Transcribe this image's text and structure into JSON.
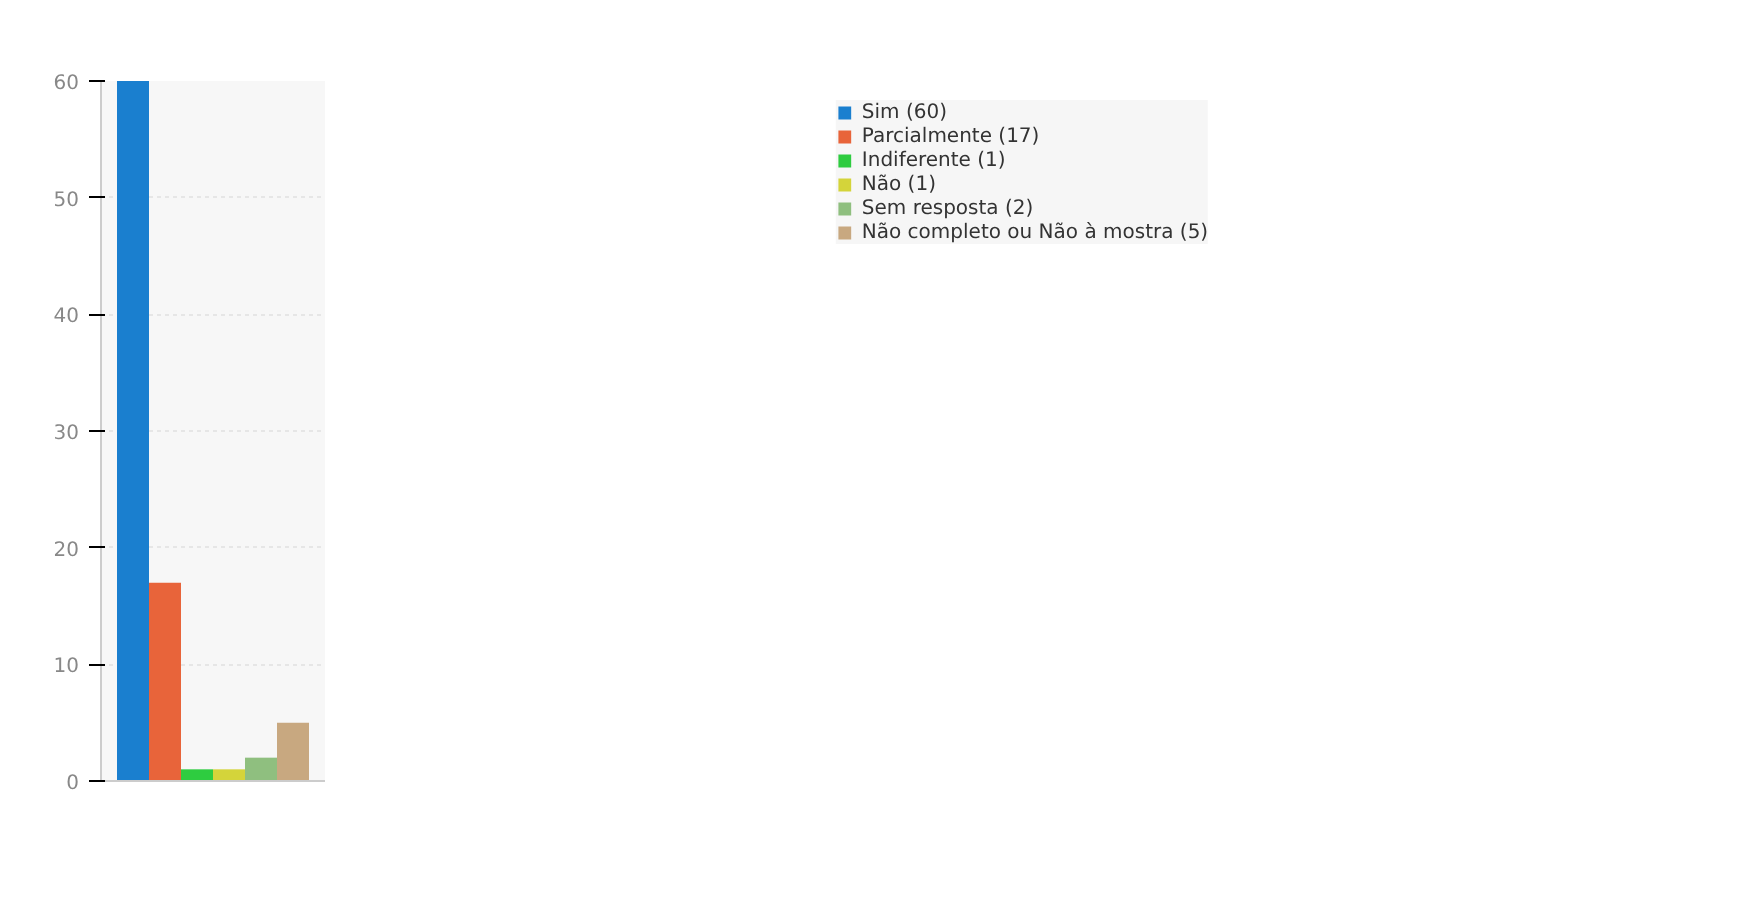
{
  "chart_data": {
    "type": "bar",
    "categories": [
      null,
      null,
      null,
      null,
      null,
      null
    ],
    "series": [
      {
        "name": "Sim (60)",
        "color": "#1a7fcf",
        "values": [
          60,
          null,
          null,
          null,
          null,
          null
        ]
      },
      {
        "name": "Parcialmente (17)",
        "color": "#e8643a",
        "values": [
          null,
          17,
          null,
          null,
          null,
          null
        ]
      },
      {
        "name": "Indiferente (1)",
        "color": "#2ecc40",
        "values": [
          null,
          null,
          1,
          null,
          null,
          null
        ]
      },
      {
        "name": "Não (1)",
        "color": "#d4d43a",
        "values": [
          null,
          null,
          null,
          1,
          null,
          null
        ]
      },
      {
        "name": "Sem resposta (2)",
        "color": "#8fbf7f",
        "values": [
          null,
          null,
          null,
          null,
          2,
          null
        ]
      },
      {
        "name": "Não completo ou Não à mostra (5)",
        "color": "#c8a880",
        "values": [
          null,
          null,
          null,
          null,
          null,
          5
        ]
      }
    ],
    "ylim": [
      0,
      60
    ],
    "yticks": [
      0,
      10,
      20,
      30,
      40,
      50,
      60
    ],
    "grid": "y",
    "legend": "top right"
  }
}
